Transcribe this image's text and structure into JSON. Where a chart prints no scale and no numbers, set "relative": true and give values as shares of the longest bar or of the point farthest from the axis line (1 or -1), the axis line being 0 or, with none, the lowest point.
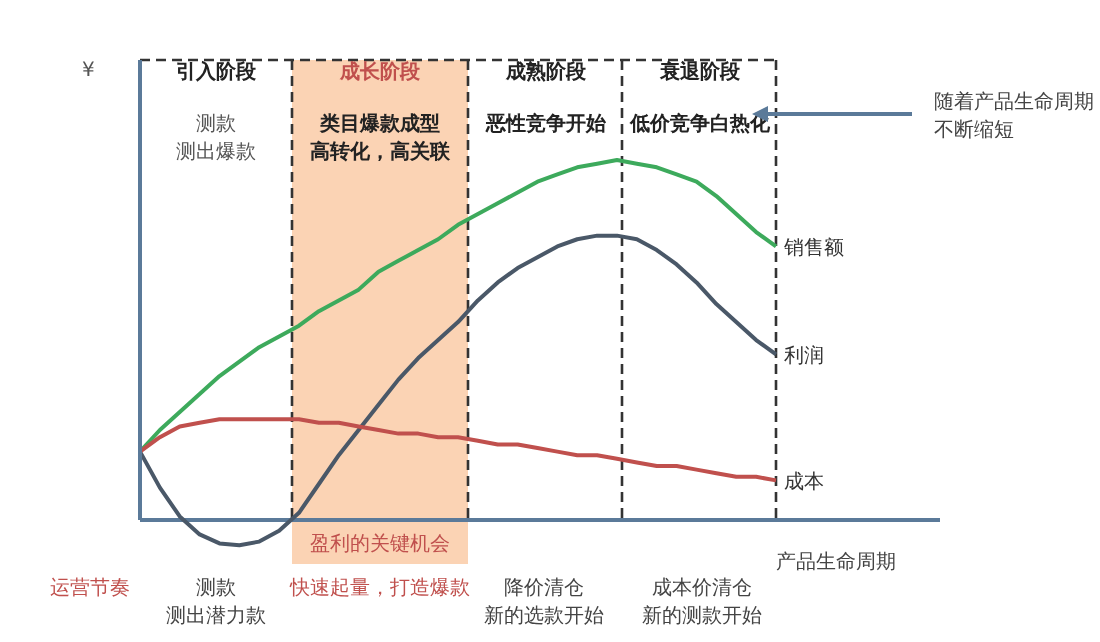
{
  "chart_data": {
    "type": "line",
    "relative": true,
    "ylabel": "¥",
    "xlabel": "产品生命周期",
    "marker": "none",
    "ref_lines": [
      {
        "axis": "y",
        "value": 0,
        "color": "#5b7a99"
      }
    ],
    "categories": [
      null,
      null,
      null,
      null,
      null,
      null,
      null,
      null,
      null,
      null,
      null,
      null,
      null,
      null,
      null,
      null,
      null,
      null,
      null,
      null,
      null,
      null,
      null,
      null,
      null,
      null,
      null,
      null,
      null,
      null,
      null,
      null,
      null
    ],
    "series": [
      {
        "name": "销售额",
        "color": "#3daa5c",
        "values": [
          0.19,
          0.25,
          0.3,
          0.35,
          0.4,
          0.44,
          0.48,
          0.51,
          0.54,
          0.58,
          0.61,
          0.64,
          0.69,
          0.72,
          0.75,
          0.78,
          0.82,
          0.85,
          0.88,
          0.91,
          0.94,
          0.96,
          0.98,
          0.99,
          1.0,
          0.99,
          0.98,
          0.96,
          0.94,
          0.9,
          0.85,
          0.8,
          0.76
        ]
      },
      {
        "name": "利润",
        "color": "#4a5868",
        "values": [
          0.19,
          0.09,
          0.01,
          -0.04,
          -0.065,
          -0.07,
          -0.06,
          -0.03,
          0.02,
          0.1,
          0.18,
          0.25,
          0.32,
          0.39,
          0.45,
          0.5,
          0.55,
          0.61,
          0.66,
          0.7,
          0.73,
          0.76,
          0.78,
          0.79,
          0.79,
          0.78,
          0.75,
          0.71,
          0.66,
          0.6,
          0.55,
          0.5,
          0.46
        ]
      },
      {
        "name": "成本",
        "color": "#c0504d",
        "values": [
          0.19,
          0.23,
          0.26,
          0.27,
          0.28,
          0.28,
          0.28,
          0.28,
          0.28,
          0.27,
          0.27,
          0.26,
          0.25,
          0.24,
          0.24,
          0.23,
          0.23,
          0.22,
          0.21,
          0.21,
          0.2,
          0.19,
          0.18,
          0.18,
          0.17,
          0.16,
          0.15,
          0.15,
          0.14,
          0.13,
          0.12,
          0.12,
          0.11
        ]
      }
    ],
    "annotations": [
      "引入阶段",
      "成长阶段",
      "成熟阶段",
      "衰退阶段",
      "测款",
      "测出爆款",
      "类目爆款成型",
      "高转化，高关联",
      "恶性竞争开始",
      "低价竞争白热化",
      "随着产品生命周期",
      "不断缩短",
      "盈利的关键机会",
      "运营节奏",
      "测款",
      "测出潜力款",
      "快速起量，打造爆款",
      "降价清仓",
      "新的选款开始",
      "成本价清仓",
      "新的测款开始"
    ]
  }
}
